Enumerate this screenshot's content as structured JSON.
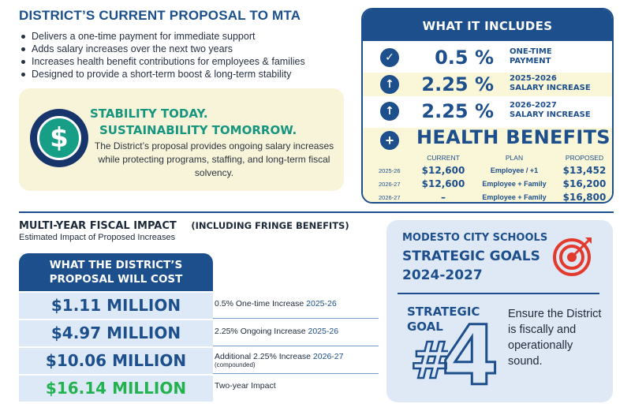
{
  "proposal": {
    "title": "DISTRICT’S CURRENT PROPOSAL TO MTA",
    "bullets": [
      "Delivers a one-time payment for immediate support",
      "Adds salary increases over the next two years",
      "Increases health benefit contributions for employees & families",
      "Designed to provide a short-term boost & long-term stability"
    ]
  },
  "stability": {
    "icon": "dollar-icon",
    "line1": "STABILITY TODAY.",
    "line2": "SUSTAINABILITY TOMORROW.",
    "text": "The District’s proposal provides ongoing salary increases while protecting programs, staffing, and long-term fiscal solvency."
  },
  "includes": {
    "title": "WHAT IT INCLUDES",
    "items": [
      {
        "icon": "check-icon",
        "value": "0.5 %",
        "label_1": "ONE-TIME",
        "label_2": "PAYMENT"
      },
      {
        "icon": "arrow-up-icon",
        "value": "2.25 %",
        "label_1": "2025-2026",
        "label_2": "SALARY INCREASE"
      },
      {
        "icon": "arrow-up-icon",
        "value": "2.25 %",
        "label_1": "2026-2027",
        "label_2": "SALARY INCREASE"
      }
    ],
    "health": {
      "icon": "plus-icon",
      "title": "HEALTH BENEFITS",
      "col_current": "CURRENT",
      "col_plan": "PLAN",
      "col_proposed": "PROPOSED",
      "rows": [
        {
          "year": "2025-26",
          "current": "$12,600",
          "plan": "Employee / +1",
          "proposed": "$13,452"
        },
        {
          "year": "2026-27",
          "current": "$12,600",
          "plan": "Employee + Family",
          "proposed": "$16,200"
        },
        {
          "year": "2026-27",
          "current": "–",
          "plan": "Employee + Family",
          "proposed": "$16,800"
        }
      ]
    }
  },
  "fiscal": {
    "title": "MULTI-YEAR FISCAL IMPACT",
    "subtitle": "(INCLUDING FRINGE BENEFITS)",
    "estimate": "Estimated Impact of Proposed Increases",
    "table_head": "WHAT THE DISTRICT’S PROPOSAL WILL COST",
    "rows": [
      {
        "amount": "$1.11 MILLION",
        "desc": "0.5% One-time Increase",
        "year": "2025-26",
        "note": ""
      },
      {
        "amount": "$4.97 MILLION",
        "desc": "2.25% Ongoing Increase",
        "year": "2025-26",
        "note": ""
      },
      {
        "amount": "$10.06 MILLION",
        "desc": "Additional 2.25% Increase",
        "year": "2026-27",
        "note": "(compounded)"
      },
      {
        "amount": "$16.14 MILLION",
        "desc": "Two-year Impact",
        "year": "",
        "note": ""
      }
    ]
  },
  "goals": {
    "school": "MODESTO CITY SCHOOLS",
    "title_1": "STRATEGIC GOALS",
    "title_2": "2024-2027",
    "icon": "target-icon",
    "strategic_1": "STRATEGIC",
    "strategic_2": "GOAL",
    "hash": "#",
    "number": "4",
    "text": "Ensure the District is fiscally and operationally sound.",
    "colors": {
      "primary": "#1c4f8c",
      "accent": "#e23b2e",
      "green": "#24b150",
      "teal": "#16957f"
    }
  }
}
